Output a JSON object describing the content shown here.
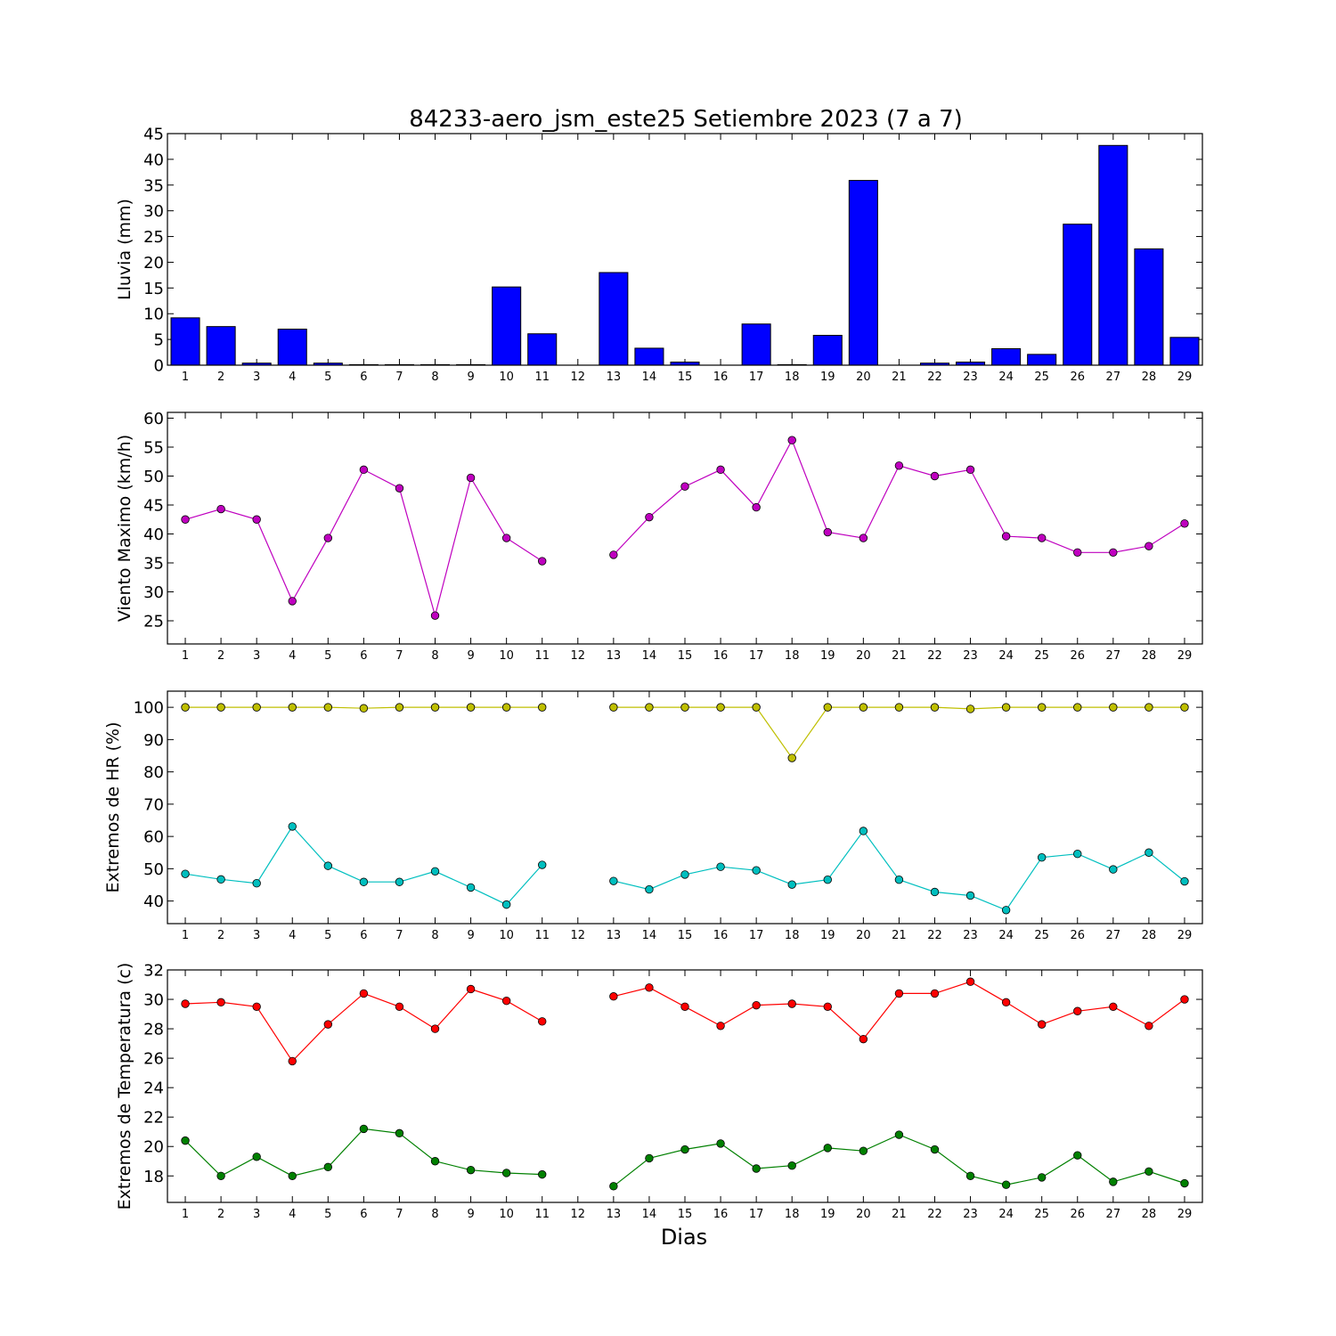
{
  "figure": {
    "title": "84233-aero_jsm_este25 Setiembre 2023  (7 a 7)",
    "xlabel": "Dias"
  },
  "chart_data": [
    {
      "type": "bar",
      "ylabel": "Lluvia (mm)",
      "ylim": [
        0,
        45
      ],
      "yticks": [
        0,
        5,
        10,
        15,
        20,
        25,
        30,
        35,
        40,
        45
      ],
      "xlim": [
        0.5,
        29.5
      ],
      "categories": [
        1,
        2,
        3,
        4,
        5,
        6,
        7,
        8,
        9,
        10,
        11,
        12,
        13,
        14,
        15,
        16,
        17,
        18,
        19,
        20,
        21,
        22,
        23,
        24,
        25,
        26,
        27,
        28,
        29
      ],
      "series": [
        {
          "color": "#0000ff",
          "values": [
            9.2,
            7.5,
            0.4,
            7.0,
            0.4,
            0.1,
            0.1,
            0.1,
            0.1,
            15.2,
            6.1,
            null,
            18.0,
            3.3,
            0.6,
            null,
            8.0,
            0.1,
            5.8,
            35.9,
            null,
            0.4,
            0.6,
            3.2,
            2.1,
            27.4,
            42.7,
            22.6,
            5.4
          ]
        }
      ],
      "grid": false
    },
    {
      "type": "line",
      "ylabel": "Viento Maximo (km/h)",
      "ylim": [
        21,
        61
      ],
      "yticks": [
        25,
        30,
        35,
        40,
        45,
        50,
        55,
        60
      ],
      "xlim": [
        0.5,
        29.5
      ],
      "x": [
        1,
        2,
        3,
        4,
        5,
        6,
        7,
        8,
        9,
        10,
        11,
        12,
        13,
        14,
        15,
        16,
        17,
        18,
        19,
        20,
        21,
        22,
        23,
        24,
        25,
        26,
        27,
        28,
        29
      ],
      "series": [
        {
          "color": "#bf00bf",
          "values": [
            42.5,
            44.3,
            42.5,
            28.4,
            39.3,
            51.1,
            47.9,
            25.9,
            49.7,
            39.3,
            35.3,
            null,
            36.4,
            42.9,
            48.2,
            51.1,
            44.6,
            56.2,
            40.3,
            39.3,
            51.8,
            50.0,
            51.1,
            39.6,
            39.3,
            36.8,
            36.8,
            37.9,
            41.8
          ]
        }
      ],
      "grid": false
    },
    {
      "type": "line",
      "ylabel": "Extremos de HR (%)",
      "ylim": [
        33,
        105
      ],
      "yticks": [
        40,
        50,
        60,
        70,
        80,
        90,
        100
      ],
      "xlim": [
        0.5,
        29.5
      ],
      "x": [
        1,
        2,
        3,
        4,
        5,
        6,
        7,
        8,
        9,
        10,
        11,
        12,
        13,
        14,
        15,
        16,
        17,
        18,
        19,
        20,
        21,
        22,
        23,
        24,
        25,
        26,
        27,
        28,
        29
      ],
      "series": [
        {
          "color": "#bfbf00",
          "values": [
            100,
            100,
            100,
            100,
            100,
            99.7,
            100,
            100,
            100,
            100,
            100,
            null,
            100,
            100,
            100,
            100,
            100,
            84.3,
            100,
            100,
            100,
            100,
            99.5,
            100,
            100,
            100,
            100,
            100,
            100
          ]
        },
        {
          "color": "#00bfbf",
          "values": [
            48.4,
            46.7,
            45.5,
            63.1,
            50.9,
            45.9,
            45.9,
            49.2,
            44.2,
            38.9,
            51.2,
            null,
            46.2,
            43.6,
            48.2,
            50.6,
            49.5,
            45.1,
            46.6,
            61.7,
            46.6,
            42.8,
            41.7,
            37.2,
            53.5,
            54.6,
            49.8,
            55.0,
            46.1
          ]
        }
      ],
      "grid": false
    },
    {
      "type": "line",
      "ylabel": "Extremos de Temperatura (c)",
      "ylim": [
        16.2,
        32
      ],
      "yticks": [
        18,
        20,
        22,
        24,
        26,
        28,
        30,
        32
      ],
      "xlim": [
        0.5,
        29.5
      ],
      "x": [
        1,
        2,
        3,
        4,
        5,
        6,
        7,
        8,
        9,
        10,
        11,
        12,
        13,
        14,
        15,
        16,
        17,
        18,
        19,
        20,
        21,
        22,
        23,
        24,
        25,
        26,
        27,
        28,
        29
      ],
      "series": [
        {
          "color": "#ff0000",
          "values": [
            29.7,
            29.8,
            29.5,
            25.8,
            28.3,
            30.4,
            29.5,
            28.0,
            30.7,
            29.9,
            28.5,
            null,
            30.2,
            30.8,
            29.5,
            28.2,
            29.6,
            29.7,
            29.5,
            27.3,
            30.4,
            30.4,
            31.2,
            29.8,
            28.3,
            29.2,
            29.5,
            28.2,
            30.0
          ]
        },
        {
          "color": "#008000",
          "values": [
            20.4,
            18.0,
            19.3,
            18.0,
            18.6,
            21.2,
            20.9,
            19.0,
            18.4,
            18.2,
            18.1,
            null,
            17.3,
            19.2,
            19.8,
            20.2,
            18.5,
            18.7,
            19.9,
            19.7,
            20.8,
            19.8,
            18.0,
            17.4,
            17.9,
            19.4,
            17.6,
            18.3,
            17.5
          ]
        }
      ],
      "grid": false
    }
  ]
}
